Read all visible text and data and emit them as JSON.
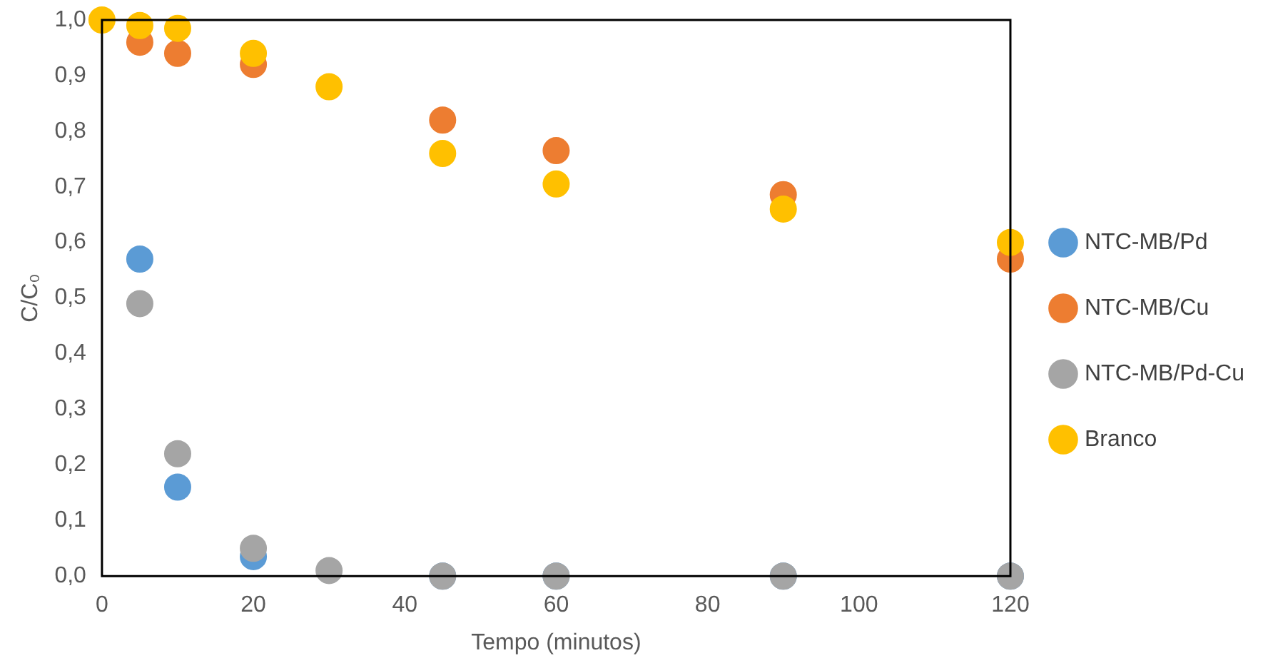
{
  "chart_data": {
    "type": "scatter",
    "xlabel": "Tempo (minutos)",
    "ylabel": "C/C₀",
    "marker": "circle",
    "legend": "right",
    "grid": false,
    "x": [
      0,
      5,
      10,
      20,
      30,
      45,
      60,
      90,
      120
    ],
    "xlim": [
      0,
      120
    ],
    "xticks": [
      0,
      20,
      40,
      60,
      80,
      100,
      120
    ],
    "ylim": [
      0,
      1
    ],
    "yticks": [
      {
        "value": 0,
        "label": "0,0"
      },
      {
        "value": 0.1,
        "label": "0,1"
      },
      {
        "value": 0.2,
        "label": "0,2"
      },
      {
        "value": 0.3,
        "label": "0,3"
      },
      {
        "value": 0.4,
        "label": "0,4"
      },
      {
        "value": 0.5,
        "label": "0,5"
      },
      {
        "value": 0.6,
        "label": "0,6"
      },
      {
        "value": 0.7,
        "label": "0,7"
      },
      {
        "value": 0.8,
        "label": "0,8"
      },
      {
        "value": 0.9,
        "label": "0,9"
      },
      {
        "value": 1,
        "label": "1,0"
      }
    ],
    "series": [
      {
        "name": "NTC-MB/Pd",
        "color": "#5b9bd5",
        "values": [
          null,
          0.57,
          0.16,
          0.035,
          null,
          0,
          0,
          0,
          0
        ]
      },
      {
        "name": "NTC-MB/Cu",
        "color": "#ed7d31",
        "values": [
          null,
          0.96,
          0.94,
          0.92,
          null,
          0.82,
          0.765,
          0.686,
          0.57
        ]
      },
      {
        "name": "NTC-MB/Pd-Cu",
        "color": "#a5a5a5",
        "values": [
          null,
          0.49,
          0.22,
          0.05,
          0.01,
          0,
          0,
          0,
          0
        ]
      },
      {
        "name": "Branco",
        "color": "#ffc000",
        "values": [
          1.0,
          0.99,
          0.985,
          0.94,
          0.88,
          0.76,
          0.705,
          0.66,
          0.6
        ]
      }
    ]
  }
}
